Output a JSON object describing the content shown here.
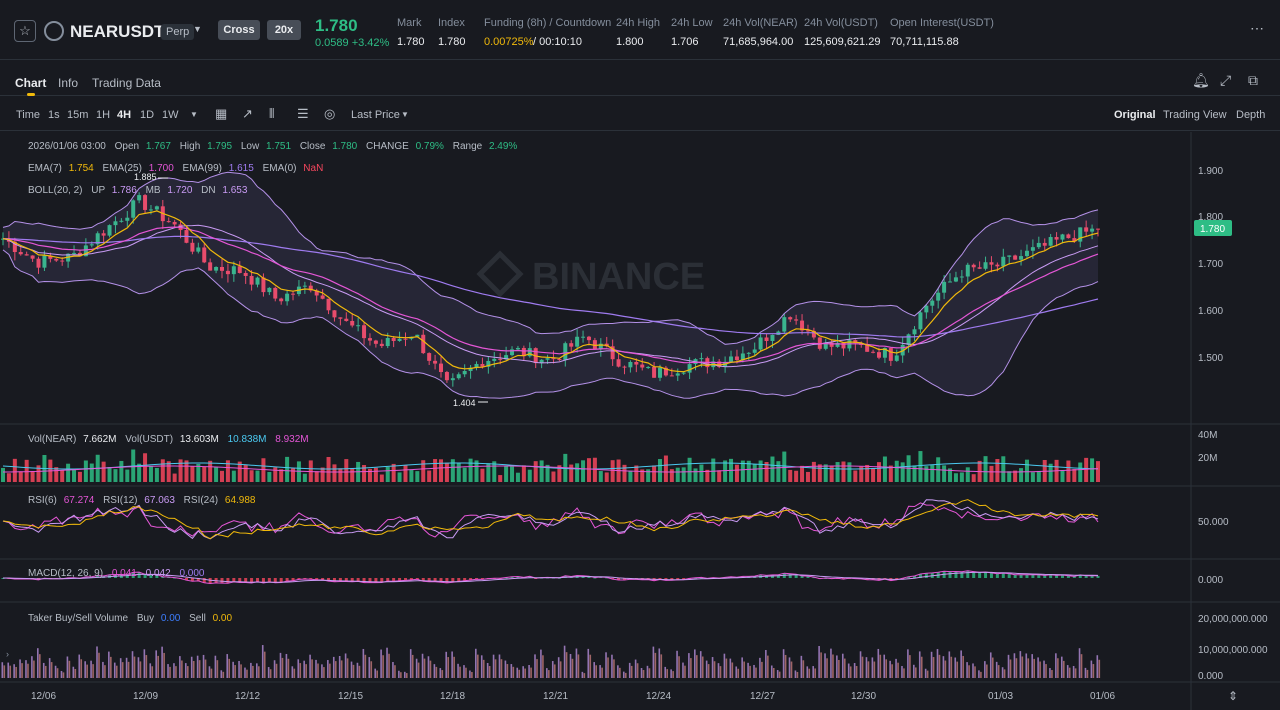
{
  "header": {
    "symbol": "NEARUSDT",
    "badge": "Perp",
    "margin_mode": "Cross",
    "leverage": "20x",
    "last_price": "1.780",
    "change": "0.0589 +3.42%",
    "stats": [
      {
        "label": "Mark",
        "value": "1.780"
      },
      {
        "label": "Index",
        "value": "1.780"
      },
      {
        "label": "Funding (8h) / Countdown",
        "value": "0.00725%",
        "value2": "/ 00:10:10"
      },
      {
        "label": "24h High",
        "value": "1.800"
      },
      {
        "label": "24h Low",
        "value": "1.706"
      },
      {
        "label": "24h Vol(NEAR)",
        "value": "71,685,964.00"
      },
      {
        "label": "24h Vol(USDT)",
        "value": "125,609,621.29"
      },
      {
        "label": "Open Interest(USDT)",
        "value": "70,711,115.88"
      }
    ]
  },
  "tabs": [
    "Chart",
    "Info",
    "Trading Data"
  ],
  "toolbar": {
    "time_label": "Time",
    "intervals": [
      "1s",
      "15m",
      "1H",
      "4H",
      "1D",
      "1W"
    ],
    "active_interval": "4H",
    "price_source": "Last Price",
    "views": [
      "Original",
      "Trading View",
      "Depth"
    ],
    "active_view": "Original"
  },
  "legend": {
    "ohlc": {
      "date": "2026/01/06 03:00",
      "open_label": "Open",
      "open": "1.767",
      "high_label": "High",
      "high": "1.795",
      "low_label": "Low",
      "low": "1.751",
      "close_label": "Close",
      "close": "1.780",
      "change_label": "CHANGE",
      "change": "0.79%",
      "range_label": "Range",
      "range": "2.49%"
    },
    "ema": {
      "ema7_label": "EMA(7)",
      "ema7": "1.754",
      "ema25_label": "EMA(25)",
      "ema25": "1.700",
      "ema99_label": "EMA(99)",
      "ema99": "1.615",
      "ema0_label": "EMA(0)",
      "ema0": "NaN"
    },
    "boll": {
      "label": "BOLL(20, 2)",
      "up_label": "UP",
      "up": "1.786",
      "mb_label": "MB",
      "mb": "1.720",
      "dn_label": "DN",
      "dn": "1.653"
    },
    "vol": {
      "label": "Vol(NEAR)",
      "near": "7.662M",
      "usdt_label": "Vol(USDT)",
      "usdt": "13.603M",
      "ma1": "10.838M",
      "ma2": "8.932M"
    },
    "rsi": {
      "r6_label": "RSI(6)",
      "r6": "67.274",
      "r12_label": "RSI(12)",
      "r12": "67.063",
      "r24_label": "RSI(24)",
      "r24": "64.988"
    },
    "macd": {
      "label": "MACD(12, 26, 9)",
      "dif": "0.041",
      "dea": "0.042",
      "hist": "0.000"
    },
    "taker": {
      "label": "Taker Buy/Sell Volume",
      "buy_label": "Buy",
      "buy": "0.00",
      "sell_label": "Sell",
      "sell": "0.00"
    }
  },
  "annotations": {
    "high": "1.885",
    "low": "1.404"
  },
  "watermark": "BINANCE",
  "price_axis": [
    "1.900",
    "1.800",
    "1.700",
    "1.600",
    "1.500"
  ],
  "current_price_tag": "1.780",
  "vol_axis": [
    "40M",
    "20M"
  ],
  "rsi_axis": "50.000",
  "macd_axis": "0.000",
  "taker_axis": [
    "20,000,000.000",
    "10,000,000.000",
    "0.000"
  ],
  "date_axis": [
    "12/06",
    "12/09",
    "12/12",
    "12/15",
    "12/18",
    "12/21",
    "12/24",
    "12/27",
    "12/30",
    "01/03",
    "01/06"
  ],
  "colors": {
    "up": "#2ebd85",
    "down": "#f6465d",
    "accent": "#f0b90b",
    "bg": "#181a20"
  },
  "chart_data": {
    "type": "candlestick",
    "interval": "4H",
    "x_range": [
      "12/06",
      "01/06"
    ],
    "y_range": [
      1.404,
      1.9
    ],
    "close_anchors": [
      {
        "x": "12/06",
        "close": 1.76
      },
      {
        "x": "12/07",
        "close": 1.71
      },
      {
        "x": "12/08",
        "close": 1.72
      },
      {
        "x": "12/09",
        "close": 1.78
      },
      {
        "x": "12/09",
        "close": 1.84
      },
      {
        "x": "12/10",
        "close": 1.79
      },
      {
        "x": "12/11",
        "close": 1.7
      },
      {
        "x": "12/12",
        "close": 1.69
      },
      {
        "x": "12/13",
        "close": 1.63
      },
      {
        "x": "12/14",
        "close": 1.66
      },
      {
        "x": "12/15",
        "close": 1.58
      },
      {
        "x": "12/16",
        "close": 1.53
      },
      {
        "x": "12/17",
        "close": 1.56
      },
      {
        "x": "12/18",
        "close": 1.44
      },
      {
        "x": "12/19",
        "close": 1.5
      },
      {
        "x": "12/20",
        "close": 1.52
      },
      {
        "x": "12/21",
        "close": 1.5
      },
      {
        "x": "12/22",
        "close": 1.55
      },
      {
        "x": "12/23",
        "close": 1.5
      },
      {
        "x": "12/24",
        "close": 1.47
      },
      {
        "x": "12/25",
        "close": 1.49
      },
      {
        "x": "12/26",
        "close": 1.5
      },
      {
        "x": "12/27",
        "close": 1.53
      },
      {
        "x": "12/28",
        "close": 1.6
      },
      {
        "x": "12/29",
        "close": 1.53
      },
      {
        "x": "12/30",
        "close": 1.53
      },
      {
        "x": "12/31",
        "close": 1.51
      },
      {
        "x": "01/01",
        "close": 1.62
      },
      {
        "x": "01/02",
        "close": 1.69
      },
      {
        "x": "01/03",
        "close": 1.7
      },
      {
        "x": "01/04",
        "close": 1.73
      },
      {
        "x": "01/05",
        "close": 1.76
      },
      {
        "x": "01/06",
        "close": 1.78
      }
    ],
    "marked_high": 1.885,
    "marked_low": 1.404
  }
}
